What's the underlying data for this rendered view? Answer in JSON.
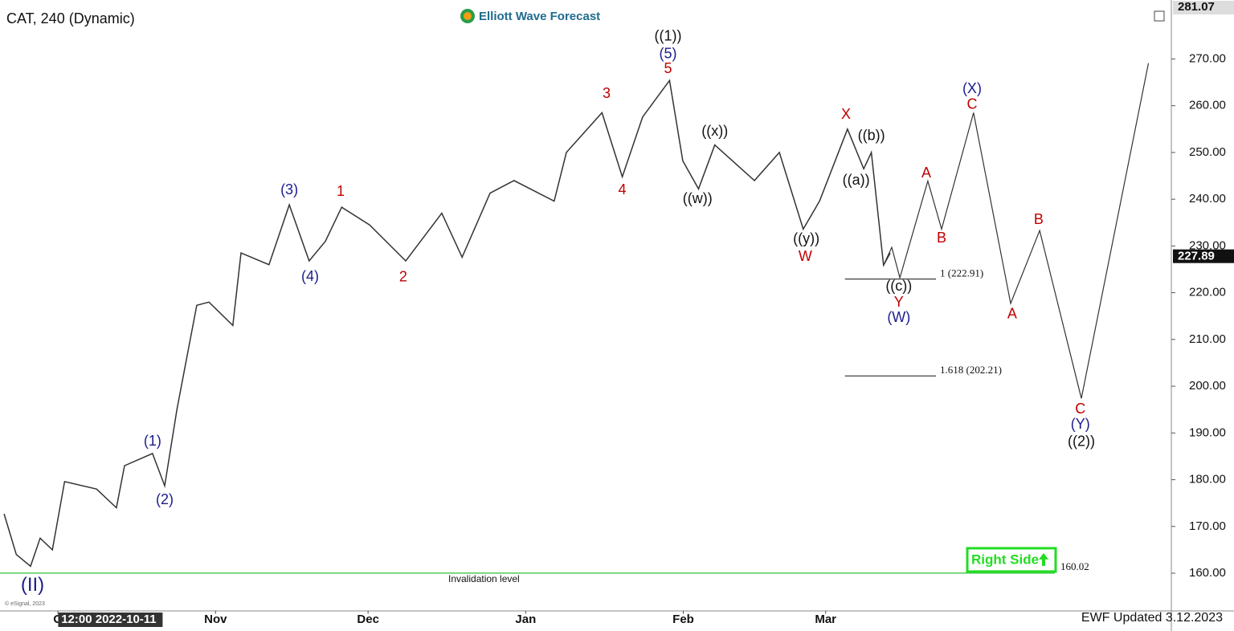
{
  "chart_data": {
    "type": "line",
    "title": "CAT, 240 (Dynamic)",
    "brand": "Elliott Wave Forecast",
    "updated": "EWF Updated 3.12.2023",
    "copyright": "© eSignal, 2023",
    "cursor_label": {
      "value": 10,
      "label": "12:00 2022-10-11"
    },
    "xlim": [
      -11.4,
      219
    ],
    "ylim": [
      152,
      281.07
    ],
    "xticks": [
      {
        "value": 0,
        "label": "O"
      },
      {
        "value": 31,
        "label": "Nov"
      },
      {
        "value": 61,
        "label": "Dec"
      },
      {
        "value": 92,
        "label": "Jan"
      },
      {
        "value": 123,
        "label": "Feb"
      },
      {
        "value": 151,
        "label": "Mar"
      }
    ],
    "yticks": [
      {
        "value": 160,
        "label": "160.00"
      },
      {
        "value": 170,
        "label": "170.00"
      },
      {
        "value": 180,
        "label": "180.00"
      },
      {
        "value": 190,
        "label": "190.00"
      },
      {
        "value": 200,
        "label": "200.00"
      },
      {
        "value": 210,
        "label": "210.00"
      },
      {
        "value": 220,
        "label": "220.00"
      },
      {
        "value": 230,
        "label": "230.00"
      },
      {
        "value": 240,
        "label": "240.00"
      },
      {
        "value": 250,
        "label": "250.00"
      },
      {
        "value": 260,
        "label": "260.00"
      },
      {
        "value": 270,
        "label": "270.00"
      }
    ],
    "last_price": 227.89,
    "series": [
      {
        "name": "Price",
        "color": "#333333",
        "x": [
          -10.6,
          -8.2,
          -5.4,
          -3.5,
          -1.1,
          1.3,
          7.6,
          11.5,
          13.1,
          18.6,
          21,
          23.4,
          27.3,
          29.7,
          34.4,
          36,
          41.5,
          45.5,
          49.4,
          52.6,
          55.8,
          61.3,
          68.4,
          75.5,
          79.5,
          85,
          89.7,
          97.6,
          100,
          107,
          111,
          115,
          120.3,
          122.9,
          126,
          129.2,
          137,
          141.9,
          146.6,
          149.8,
          155.3,
          158.5,
          160,
          162.4,
          163.7
        ],
        "values": [
          172.7,
          164,
          161.5,
          167.5,
          165,
          179.6,
          178,
          174,
          183,
          185.6,
          178.7,
          195,
          217.3,
          218,
          213,
          228.5,
          226,
          238.8,
          226.8,
          231,
          238.3,
          234.5,
          226.8,
          237,
          227.6,
          241.3,
          244,
          239.6,
          250,
          258.5,
          244.8,
          257.6,
          265.4,
          248.2,
          242.2,
          251.6,
          244,
          250,
          233.6,
          239.6,
          255,
          246.5,
          250,
          225.9,
          228.5
        ]
      },
      {
        "name": "Projection",
        "color": "#333333",
        "x": [
          162.4,
          164,
          165.6,
          171.1,
          173.8,
          180.1,
          187.4,
          193.1,
          201.3,
          214.5
        ],
        "values": [
          225.9,
          229.7,
          223.2,
          243.9,
          233.6,
          258.5,
          217.7,
          233.3,
          197.4,
          269.1
        ]
      }
    ],
    "fib_levels": [
      {
        "label": "1 (222.91)",
        "value": 222.91,
        "x": [
          154.8,
          172.7
        ]
      },
      {
        "label": "1.618 (202.21)",
        "value": 202.21,
        "x": [
          154.8,
          172.7
        ]
      }
    ],
    "invalidation": {
      "label": "Invalidation level",
      "value": 160.02,
      "color": "#2fbf2f"
    },
    "badge": {
      "label": "Right Side",
      "color": "#22dd22"
    },
    "wave_labels": [
      {
        "text": "(II)",
        "x": -5,
        "y": 157.3,
        "color": "#1c1c8c"
      },
      {
        "text": "(1)",
        "x": 18.6,
        "y": 188.1,
        "color": "#1c1c8c"
      },
      {
        "text": "(2)",
        "x": 21,
        "y": 175.6,
        "color": "#1c1c8c"
      },
      {
        "text": "(3)",
        "x": 45.5,
        "y": 241.9,
        "color": "#1c1c8c"
      },
      {
        "text": "(4)",
        "x": 49.6,
        "y": 223.3,
        "color": "#1c1c8c"
      },
      {
        "text": "1",
        "x": 55.6,
        "y": 241.5,
        "color": "#c00000"
      },
      {
        "text": "2",
        "x": 67.9,
        "y": 223.2,
        "color": "#c00000"
      },
      {
        "text": "3",
        "x": 107.9,
        "y": 262.5,
        "color": "#c00000"
      },
      {
        "text": "4",
        "x": 111,
        "y": 241.9,
        "color": "#c00000"
      },
      {
        "text": "5",
        "x": 120,
        "y": 267.8,
        "color": "#c00000"
      },
      {
        "text": "(5)",
        "x": 120,
        "y": 271,
        "color": "#1c1c8c"
      },
      {
        "text": "((1))",
        "x": 120,
        "y": 274.8,
        "color": "#111111"
      },
      {
        "text": "((x))",
        "x": 129.2,
        "y": 254.4,
        "color": "#111111"
      },
      {
        "text": "((w))",
        "x": 125.8,
        "y": 240,
        "color": "#111111"
      },
      {
        "text": "((y))",
        "x": 147.2,
        "y": 231.4,
        "color": "#111111"
      },
      {
        "text": "W",
        "x": 147,
        "y": 227.6,
        "color": "#c00000"
      },
      {
        "text": "X",
        "x": 155,
        "y": 258,
        "color": "#c00000"
      },
      {
        "text": "((b))",
        "x": 160,
        "y": 253.5,
        "color": "#111111"
      },
      {
        "text": "((a))",
        "x": 157,
        "y": 243.9,
        "color": "#111111"
      },
      {
        "text": "((c))",
        "x": 165.4,
        "y": 221.3,
        "color": "#111111"
      },
      {
        "text": "Y",
        "x": 165.4,
        "y": 217.8,
        "color": "#c00000"
      },
      {
        "text": "(W)",
        "x": 165.4,
        "y": 214.6,
        "color": "#1c1c8c"
      },
      {
        "text": "A",
        "x": 170.8,
        "y": 245.5,
        "color": "#c00000"
      },
      {
        "text": "B",
        "x": 173.8,
        "y": 231.6,
        "color": "#c00000"
      },
      {
        "text": "(X)",
        "x": 179.8,
        "y": 263.5,
        "color": "#1c1c8c"
      },
      {
        "text": "C",
        "x": 179.8,
        "y": 260.2,
        "color": "#c00000"
      },
      {
        "text": "B",
        "x": 192.9,
        "y": 235.5,
        "color": "#c00000"
      },
      {
        "text": "A",
        "x": 187.7,
        "y": 215.3,
        "color": "#c00000"
      },
      {
        "text": "C",
        "x": 201.1,
        "y": 195,
        "color": "#c00000"
      },
      {
        "text": "(Y)",
        "x": 201.1,
        "y": 191.7,
        "color": "#1c1c8c"
      },
      {
        "text": "((2))",
        "x": 201.3,
        "y": 188,
        "color": "#111111"
      }
    ]
  }
}
